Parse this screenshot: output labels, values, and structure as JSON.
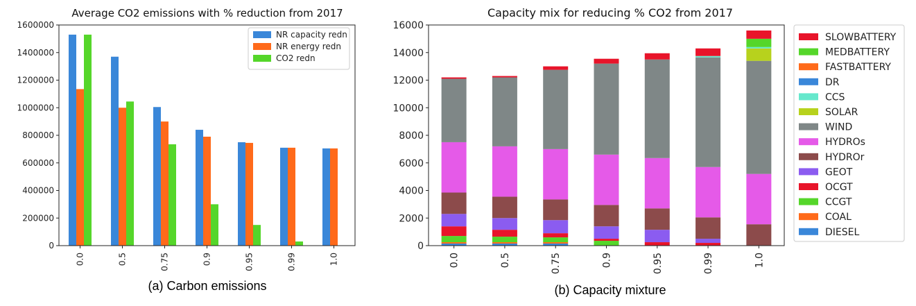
{
  "chart_data": [
    {
      "type": "bar",
      "title": "Average CO2 emissions with % reduction from 2017",
      "caption": "(a) Carbon emissions",
      "xlabel": "",
      "ylabel": "",
      "categories": [
        "0.0",
        "0.5",
        "0.75",
        "0.9",
        "0.95",
        "0.99",
        "1.0"
      ],
      "yticks": [
        "0",
        "200000",
        "400000",
        "600000",
        "800000",
        "1000000",
        "1200000",
        "1400000",
        "1600000"
      ],
      "ylim": [
        0,
        1600000
      ],
      "legend_position": "top-right",
      "series": [
        {
          "name": "NR capacity redn",
          "color": "#3a87d9",
          "values": [
            1530000,
            1370000,
            1005000,
            840000,
            750000,
            710000,
            705000
          ]
        },
        {
          "name": "NR energy redn",
          "color": "#ff6a1a",
          "values": [
            1135000,
            1000000,
            900000,
            790000,
            745000,
            710000,
            705000
          ]
        },
        {
          "name": "CO2 redn",
          "color": "#55d62a",
          "values": [
            1530000,
            1045000,
            735000,
            300000,
            150000,
            30000,
            0
          ]
        }
      ]
    },
    {
      "type": "bar",
      "stacked": true,
      "title": "Capacity mix for reducing % CO2 from 2017",
      "caption": "(b) Capacity mixture",
      "xlabel": "",
      "ylabel": "",
      "categories": [
        "0.0",
        "0.5",
        "0.75",
        "0.9",
        "0.95",
        "0.99",
        "1.0"
      ],
      "yticks": [
        "0",
        "2000",
        "4000",
        "6000",
        "8000",
        "10000",
        "12000",
        "14000",
        "16000"
      ],
      "ylim": [
        0,
        16000
      ],
      "legend_position": "outside-right",
      "legend_order": [
        "SLOWBATTERY",
        "MEDBATTERY",
        "FASTBATTERY",
        "DR",
        "CCS",
        "SOLAR",
        "WIND",
        "HYDROs",
        "HYDROr",
        "GEOT",
        "OCGT",
        "CCGT",
        "COAL",
        "DIESEL"
      ],
      "series": [
        {
          "name": "DIESEL",
          "color": "#3a87d9",
          "values": [
            150,
            150,
            150,
            0,
            0,
            0,
            0
          ]
        },
        {
          "name": "COAL",
          "color": "#ff6a1a",
          "values": [
            100,
            100,
            100,
            0,
            0,
            0,
            0
          ]
        },
        {
          "name": "CCGT",
          "color": "#55d62a",
          "values": [
            450,
            400,
            350,
            350,
            0,
            0,
            0
          ]
        },
        {
          "name": "OCGT",
          "color": "#e8142a",
          "values": [
            700,
            500,
            300,
            150,
            250,
            200,
            0
          ]
        },
        {
          "name": "GEOT",
          "color": "#8b5cf0",
          "values": [
            900,
            850,
            950,
            900,
            900,
            300,
            0
          ]
        },
        {
          "name": "HYDROr",
          "color": "#8c4b4b",
          "values": [
            1550,
            1550,
            1500,
            1550,
            1550,
            1550,
            1550
          ]
        },
        {
          "name": "HYDROs",
          "color": "#e55ae8",
          "values": [
            3650,
            3650,
            3650,
            3650,
            3650,
            3650,
            3650
          ]
        },
        {
          "name": "WIND",
          "color": "#7f8787",
          "values": [
            4600,
            5000,
            5750,
            6600,
            7150,
            7950,
            8200
          ]
        },
        {
          "name": "SOLAR",
          "color": "#b7d21d",
          "values": [
            0,
            0,
            0,
            0,
            0,
            0,
            900
          ]
        },
        {
          "name": "CCS",
          "color": "#66e8cc",
          "values": [
            0,
            0,
            0,
            0,
            0,
            100,
            100
          ]
        },
        {
          "name": "DR",
          "color": "#3a87d9",
          "values": [
            0,
            0,
            0,
            0,
            0,
            0,
            0
          ]
        },
        {
          "name": "FASTBATTERY",
          "color": "#ff6a1a",
          "values": [
            0,
            0,
            0,
            0,
            0,
            0,
            0
          ]
        },
        {
          "name": "MEDBATTERY",
          "color": "#55d62a",
          "values": [
            0,
            0,
            0,
            0,
            0,
            0,
            600
          ]
        },
        {
          "name": "SLOWBATTERY",
          "color": "#e8142a",
          "values": [
            100,
            100,
            250,
            350,
            450,
            550,
            600
          ]
        }
      ]
    }
  ]
}
